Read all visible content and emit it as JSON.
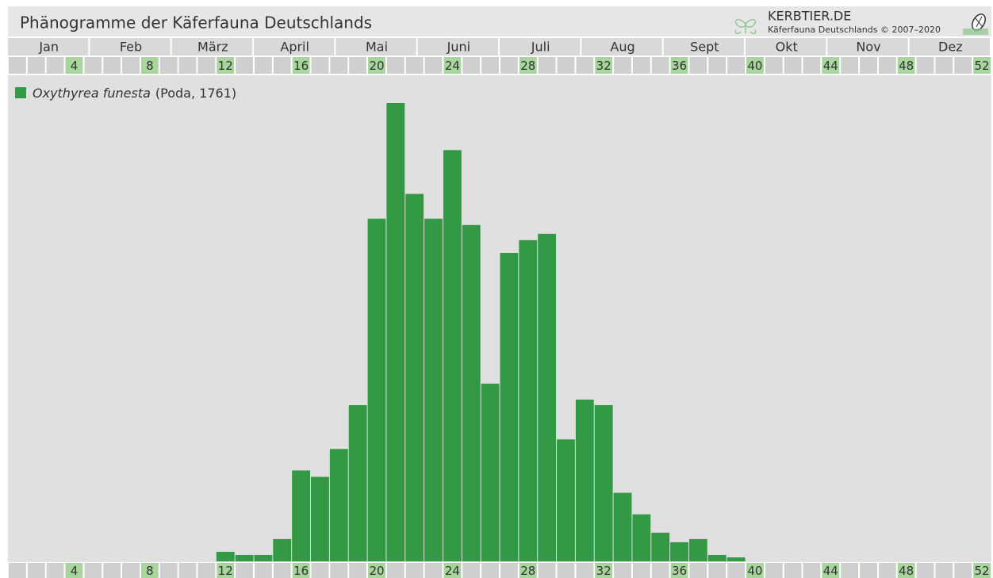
{
  "header": {
    "title": "Phänogramme der Käferfauna Deutschlands",
    "site": "KERBTIER.DE",
    "subtitle": "Käferfauna Deutschlands © 2007–2020"
  },
  "chart_data": {
    "type": "bar",
    "months": [
      "Jan",
      "Feb",
      "März",
      "April",
      "Mai",
      "Juni",
      "Juli",
      "Aug",
      "Sept",
      "Okt",
      "Nov",
      "Dez"
    ],
    "categories": [
      null,
      null,
      null,
      "4",
      null,
      null,
      null,
      "8",
      null,
      null,
      null,
      "12",
      null,
      null,
      null,
      "16",
      null,
      null,
      null,
      "20",
      null,
      null,
      null,
      "24",
      null,
      null,
      null,
      "28",
      null,
      null,
      null,
      "32",
      null,
      null,
      null,
      "36",
      null,
      null,
      null,
      "40",
      null,
      null,
      null,
      "44",
      null,
      null,
      null,
      "48",
      null,
      null,
      null,
      "52"
    ],
    "series": [
      {
        "name": "Oxythyrea funesta",
        "author": "(Poda, 1761)",
        "color": "#339944",
        "values": [
          0,
          0,
          0,
          0,
          0,
          0,
          0,
          0,
          0,
          0,
          0,
          12,
          8,
          8,
          28,
          114,
          106,
          141,
          196,
          430,
          575,
          461,
          430,
          516,
          422,
          223,
          387,
          403,
          411,
          153,
          203,
          196,
          86,
          59,
          36,
          24,
          28,
          8,
          5,
          0,
          0,
          0,
          0,
          0,
          0,
          0,
          0,
          0,
          0,
          0,
          0,
          0
        ]
      }
    ],
    "ylim": [
      0,
      575
    ]
  }
}
